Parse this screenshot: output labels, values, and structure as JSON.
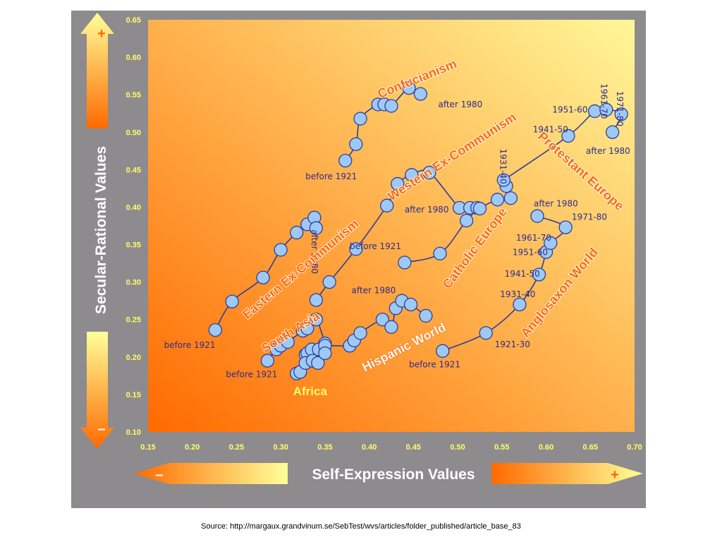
{
  "colors": {
    "background_panel": "#8d8b8d",
    "plot_light": "#fff799",
    "plot_dark": "#ff6a00",
    "point_fill": "#9ec9f5",
    "point_stroke": "#2b3f9e",
    "line": "#2b3f9e",
    "label": "#2b2b8f",
    "group_label": "#ff6600",
    "tick": "#ffff66",
    "arrow_light": "#ffff9a",
    "arrow_dark": "#ff6a00"
  },
  "axis_arrows": {
    "x_title": "Self-Expression Values",
    "y_title": "Secular-Rational Values",
    "plus": "+",
    "minus": "–"
  },
  "source": "Source: http://margaux.grandvinum.se/SebTest/wvs/articles/folder_published/article_base_83",
  "chart_data": {
    "type": "scatter",
    "xlim": [
      0.15,
      0.7
    ],
    "ylim": [
      0.1,
      0.65
    ],
    "xticks": [
      "0.15",
      "0.20",
      "0.25",
      "0.30",
      "0.35",
      "0.40",
      "0.45",
      "0.50",
      "0.55",
      "0.60",
      "0.65",
      "0.70"
    ],
    "yticks": [
      "0.10",
      "0.15",
      "0.20",
      "0.25",
      "0.30",
      "0.35",
      "0.40",
      "0.45",
      "0.50",
      "0.55",
      "0.60",
      "0.65"
    ],
    "grid": false,
    "series": [
      {
        "name": "Confucianism",
        "x": [
          0.373,
          0.385,
          0.39,
          0.41,
          0.417,
          0.425,
          0.445,
          0.458
        ],
        "y": [
          0.462,
          0.484,
          0.518,
          0.537,
          0.537,
          0.535,
          0.559,
          0.551
        ],
        "labels": [
          {
            "text": "before 1921",
            "x": 0.328,
            "y": 0.437
          },
          {
            "text": "after 1980",
            "x": 0.478,
            "y": 0.533
          }
        ],
        "group_label": {
          "text": "Confucianism",
          "x": 0.412,
          "y": 0.545,
          "rotate": -22,
          "style": "orange"
        }
      },
      {
        "name": "Western Ex-Communism",
        "x": [
          0.34,
          0.355,
          0.385,
          0.42,
          0.432,
          0.448,
          0.468,
          0.502,
          0.514,
          0.522
        ],
        "y": [
          0.276,
          0.3,
          0.344,
          0.402,
          0.431,
          0.443,
          0.446,
          0.399,
          0.399,
          0.399
        ],
        "labels": [
          {
            "text": "after 1980",
            "x": 0.44,
            "y": 0.393
          }
        ],
        "group_label": {
          "text": "Western Ex-Communism",
          "x": 0.425,
          "y": 0.408,
          "rotate": -33,
          "style": "orange"
        }
      },
      {
        "name": "Eastern Ex-Communism",
        "x": [
          0.226,
          0.245,
          0.28,
          0.3,
          0.318,
          0.33,
          0.338,
          0.34
        ],
        "y": [
          0.236,
          0.274,
          0.306,
          0.343,
          0.366,
          0.377,
          0.386,
          0.372
        ],
        "labels": [
          {
            "text": "before 1921",
            "x": 0.168,
            "y": 0.212
          },
          {
            "text": "after 1980",
            "x": 0.335,
            "y": 0.37,
            "rotate": 90
          }
        ],
        "group_label": {
          "text": "Eastern Ex-Communism",
          "x": 0.262,
          "y": 0.25,
          "rotate": -40,
          "style": "orange"
        }
      },
      {
        "name": "South Asia",
        "x": [
          0.285,
          0.295,
          0.3,
          0.308,
          0.325,
          0.33,
          0.34,
          0.35
        ],
        "y": [
          0.195,
          0.21,
          0.215,
          0.22,
          0.235,
          0.238,
          0.25,
          0.218
        ],
        "labels": [
          {
            "text": "before 1921",
            "x": 0.238,
            "y": 0.173
          }
        ],
        "group_label": {
          "text": "South Asia",
          "x": 0.282,
          "y": 0.205,
          "rotate": -32,
          "style": "orange"
        }
      },
      {
        "name": "Hispanic World",
        "x": [
          0.328,
          0.33,
          0.335,
          0.343,
          0.35,
          0.378,
          0.383,
          0.39,
          0.415,
          0.425,
          0.43,
          0.437,
          0.447,
          0.464
        ],
        "y": [
          0.203,
          0.205,
          0.21,
          0.21,
          0.215,
          0.215,
          0.222,
          0.232,
          0.25,
          0.24,
          0.265,
          0.275,
          0.27,
          0.255
        ],
        "labels": [
          {
            "text": "after 1980",
            "x": 0.38,
            "y": 0.285
          }
        ],
        "group_label": {
          "text": "Hispanic World",
          "x": 0.395,
          "y": 0.18,
          "rotate": -27,
          "style": "white"
        }
      },
      {
        "name": "Africa",
        "x": [
          0.318,
          0.322,
          0.328,
          0.336,
          0.342,
          0.35
        ],
        "y": [
          0.178,
          0.18,
          0.192,
          0.195,
          0.192,
          0.205
        ],
        "labels": [
          {
            "text": "Africa",
            "x": 0.314,
            "y": 0.149,
            "style": "yellow"
          }
        ],
        "group_label": null
      },
      {
        "name": "Catholic Europe",
        "x": [
          0.44,
          0.48,
          0.51,
          0.525,
          0.545,
          0.56,
          0.555
        ],
        "y": [
          0.326,
          0.338,
          0.382,
          0.398,
          0.41,
          0.412,
          0.428
        ],
        "labels": [
          {
            "text": "before 1921",
            "x": 0.378,
            "y": 0.344
          }
        ],
        "group_label": {
          "text": "Catholic Europe",
          "x": 0.49,
          "y": 0.29,
          "rotate": -53,
          "style": "orange"
        }
      },
      {
        "name": "Protestant Europe",
        "x": [
          0.552,
          0.625,
          0.655,
          0.668,
          0.685,
          0.675
        ],
        "y": [
          0.436,
          0.495,
          0.528,
          0.53,
          0.524,
          0.5
        ],
        "labels": [
          {
            "text": "1931-40",
            "x": 0.548,
            "y": 0.478,
            "rotate": 90
          },
          {
            "text": "1941-50",
            "x": 0.585,
            "y": 0.5
          },
          {
            "text": "1951-60",
            "x": 0.607,
            "y": 0.526
          },
          {
            "text": "1961-70",
            "x": 0.662,
            "y": 0.565,
            "rotate": 90
          },
          {
            "text": "1971-80",
            "x": 0.68,
            "y": 0.555,
            "rotate": 90
          },
          {
            "text": "after 1980",
            "x": 0.645,
            "y": 0.471
          }
        ],
        "group_label": {
          "text": "Protestant Europe",
          "x": 0.59,
          "y": 0.493,
          "rotate": 42,
          "style": "orange"
        }
      },
      {
        "name": "Anglosaxon World",
        "x": [
          0.483,
          0.532,
          0.57,
          0.592,
          0.6,
          0.605,
          0.622,
          0.59
        ],
        "y": [
          0.208,
          0.232,
          0.27,
          0.31,
          0.34,
          0.352,
          0.373,
          0.388
        ],
        "labels": [
          {
            "text": "before 1921",
            "x": 0.445,
            "y": 0.186
          },
          {
            "text": "1921-30",
            "x": 0.542,
            "y": 0.213
          },
          {
            "text": "1931-40",
            "x": 0.548,
            "y": 0.28
          },
          {
            "text": "1941-50",
            "x": 0.553,
            "y": 0.307
          },
          {
            "text": "1951-60",
            "x": 0.562,
            "y": 0.336
          },
          {
            "text": "1961-70",
            "x": 0.566,
            "y": 0.355
          },
          {
            "text": "1971-80",
            "x": 0.629,
            "y": 0.383
          },
          {
            "text": "after 1980",
            "x": 0.586,
            "y": 0.401
          }
        ],
        "group_label": {
          "text": "Anglosaxon World",
          "x": 0.578,
          "y": 0.225,
          "rotate": -50,
          "style": "orange"
        }
      }
    ]
  }
}
